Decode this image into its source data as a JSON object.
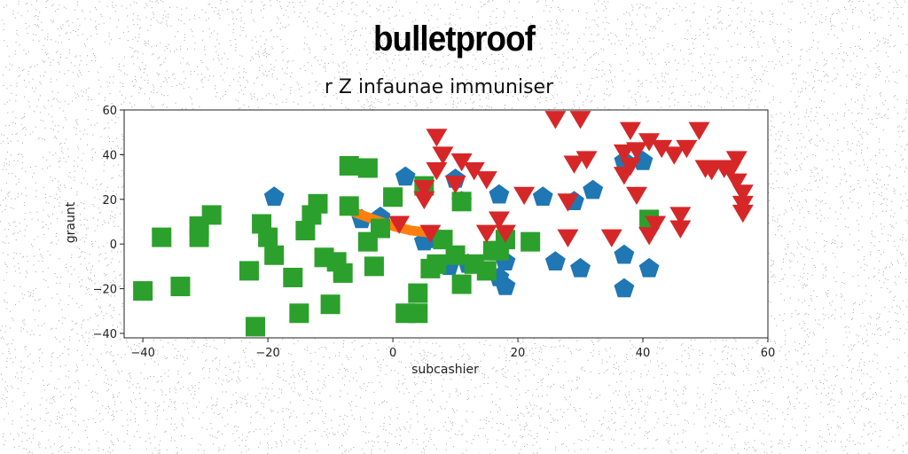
{
  "chart_data": {
    "type": "scatter",
    "title": "bulletproof",
    "subtitle": "r Z infaunae immuniser",
    "xlabel": "subcashier",
    "ylabel": "graunt",
    "xlim": [
      -43,
      60
    ],
    "ylim": [
      -42,
      60
    ],
    "xticks": [
      -40,
      -20,
      0,
      20,
      40,
      60
    ],
    "yticks": [
      -40,
      -20,
      0,
      20,
      40,
      60
    ],
    "grid": false,
    "legend": "none",
    "series": [
      {
        "marker": "pentagon",
        "color": "#1f77b4",
        "points": [
          [
            -19,
            21
          ],
          [
            2,
            30
          ],
          [
            10,
            29
          ],
          [
            11,
            19
          ],
          [
            17,
            22
          ],
          [
            24,
            21
          ],
          [
            29,
            19
          ],
          [
            32,
            24
          ],
          [
            40,
            37
          ],
          [
            37,
            37
          ],
          [
            -5,
            11
          ],
          [
            -2,
            12
          ],
          [
            5,
            1
          ],
          [
            7,
            2
          ],
          [
            9,
            -10
          ],
          [
            12,
            -9
          ],
          [
            17,
            -15
          ],
          [
            18,
            -19
          ],
          [
            18,
            -8
          ],
          [
            26,
            -8
          ],
          [
            30,
            -11
          ],
          [
            37,
            -5
          ],
          [
            37,
            -20
          ],
          [
            41,
            -11
          ]
        ]
      },
      {
        "marker": "line",
        "color": "#ff7f0e",
        "points": [
          [
            -6,
            14
          ],
          [
            -3,
            11
          ],
          [
            0,
            8
          ],
          [
            3,
            6
          ],
          [
            6,
            5
          ],
          [
            8,
            4
          ]
        ]
      },
      {
        "marker": "square",
        "color": "#2ca02c",
        "points": [
          [
            -40,
            -21
          ],
          [
            -37,
            3
          ],
          [
            -34,
            -19
          ],
          [
            -31,
            8
          ],
          [
            -31,
            3
          ],
          [
            -29,
            13
          ],
          [
            -23,
            -12
          ],
          [
            -22,
            -37
          ],
          [
            -21,
            9
          ],
          [
            -20,
            3
          ],
          [
            -19,
            -5
          ],
          [
            -16,
            -15
          ],
          [
            -15,
            -31
          ],
          [
            -14,
            6
          ],
          [
            -13,
            13
          ],
          [
            -12,
            18
          ],
          [
            -11,
            -6
          ],
          [
            -10,
            -27
          ],
          [
            -9,
            -8
          ],
          [
            -8,
            -13
          ],
          [
            -7,
            17
          ],
          [
            -7,
            35
          ],
          [
            -4,
            34
          ],
          [
            -4,
            1
          ],
          [
            -3,
            -10
          ],
          [
            -2,
            7
          ],
          [
            0,
            21
          ],
          [
            2,
            -31
          ],
          [
            4,
            -31
          ],
          [
            4,
            -22
          ],
          [
            5,
            26
          ],
          [
            6,
            -11
          ],
          [
            7,
            -9
          ],
          [
            8,
            2
          ],
          [
            10,
            -5
          ],
          [
            11,
            -18
          ],
          [
            11,
            19
          ],
          [
            13,
            -9
          ],
          [
            15,
            -12
          ],
          [
            16,
            -3
          ],
          [
            17,
            -3
          ],
          [
            18,
            2
          ],
          [
            22,
            1
          ],
          [
            41,
            11
          ]
        ]
      },
      {
        "marker": "triangle-down",
        "color": "#d62728",
        "points": [
          [
            5,
            25
          ],
          [
            5,
            20
          ],
          [
            1,
            9
          ],
          [
            6,
            5
          ],
          [
            7,
            48
          ],
          [
            7,
            33
          ],
          [
            8,
            40
          ],
          [
            10,
            27
          ],
          [
            11,
            37
          ],
          [
            13,
            33
          ],
          [
            15,
            29
          ],
          [
            15,
            5
          ],
          [
            17,
            11
          ],
          [
            18,
            5
          ],
          [
            21,
            22
          ],
          [
            26,
            56
          ],
          [
            28,
            19
          ],
          [
            28,
            3
          ],
          [
            29,
            36
          ],
          [
            30,
            56
          ],
          [
            31,
            38
          ],
          [
            35,
            3
          ],
          [
            37,
            31
          ],
          [
            37,
            41
          ],
          [
            38,
            35
          ],
          [
            38,
            51
          ],
          [
            39,
            42
          ],
          [
            39,
            22
          ],
          [
            41,
            46
          ],
          [
            41,
            4
          ],
          [
            42,
            9
          ],
          [
            43,
            43
          ],
          [
            45,
            40
          ],
          [
            46,
            7
          ],
          [
            46,
            13
          ],
          [
            47,
            43
          ],
          [
            49,
            51
          ],
          [
            50,
            34
          ],
          [
            51,
            33
          ],
          [
            53,
            34
          ],
          [
            54,
            33
          ],
          [
            55,
            38
          ],
          [
            55,
            28
          ],
          [
            56,
            23
          ],
          [
            56,
            18
          ],
          [
            56,
            14
          ]
        ]
      }
    ]
  }
}
